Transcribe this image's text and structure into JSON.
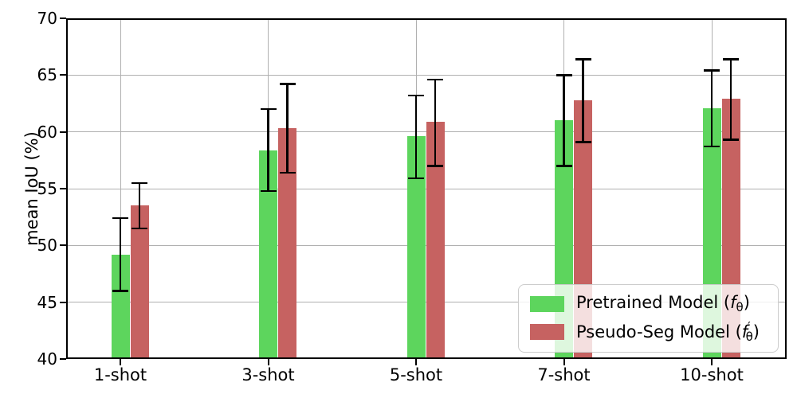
{
  "chart_data": {
    "type": "bar",
    "title": "",
    "xlabel": "",
    "ylabel": "mean IoU (%)",
    "ylim": [
      40,
      70
    ],
    "yticks": [
      40,
      45,
      50,
      55,
      60,
      65,
      70
    ],
    "grid": true,
    "legend_position": "lower right",
    "categories": [
      "1-shot",
      "3-shot",
      "5-shot",
      "7-shot",
      "10-shot"
    ],
    "series": [
      {
        "name": "Pretrained Model (fθ)",
        "color": "#5dd55d",
        "values": [
          49.2,
          58.4,
          59.6,
          61.0,
          62.1
        ],
        "err_low": [
          46.0,
          54.8,
          55.9,
          57.0,
          58.7
        ],
        "err_high": [
          52.4,
          62.0,
          63.2,
          65.0,
          65.4
        ]
      },
      {
        "name": "Pseudo-Seg Model (f′θ)",
        "color": "#c66261",
        "values": [
          53.5,
          60.3,
          60.9,
          62.8,
          62.9
        ],
        "err_low": [
          51.5,
          56.4,
          57.0,
          59.1,
          59.3
        ],
        "err_high": [
          55.5,
          64.2,
          64.6,
          66.4,
          66.4
        ]
      }
    ],
    "errorbar_color": "#000000",
    "grid_color": "#b0b0b0"
  },
  "legend": {
    "items": [
      {
        "prefix": "Pretrained Model (",
        "f": "f",
        "prime": "",
        "sub": "θ",
        "suffix": ")"
      },
      {
        "prefix": "Pseudo-Seg Model (",
        "f": "f",
        "prime": "′",
        "sub": "θ",
        "suffix": ")"
      }
    ]
  }
}
